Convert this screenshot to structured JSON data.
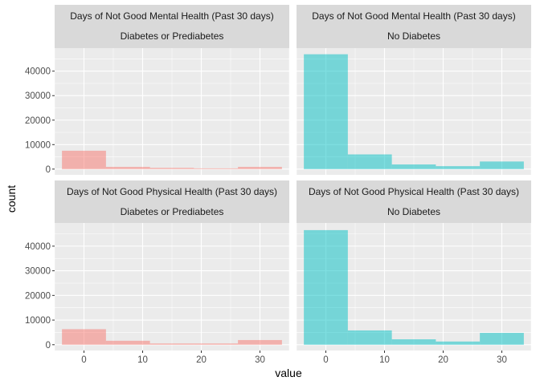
{
  "chart_data": {
    "type": "bar",
    "xlabel": "value",
    "ylabel": "count",
    "xlim": [
      -5,
      35
    ],
    "ylim": [
      -2350,
      49400
    ],
    "x_ticks": [
      0,
      10,
      20,
      30
    ],
    "y_ticks": [
      0,
      10000,
      20000,
      30000,
      40000
    ],
    "bin_edges": [
      -3.75,
      3.75,
      11.25,
      18.75,
      26.25,
      33.75
    ],
    "legend": "none",
    "grid": true,
    "colors": {
      "Diabetes or Prediabetes": "#F8766D",
      "No Diabetes": "#00BFC4"
    },
    "panels": [
      {
        "title": "Days of Not Good Mental Health (Past 30 days)",
        "group": "Diabetes or Prediabetes",
        "values": [
          7500,
          900,
          500,
          300,
          900
        ]
      },
      {
        "title": "Days of Not Good Mental Health (Past 30 days)",
        "group": "No Diabetes",
        "values": [
          46900,
          6000,
          1900,
          1200,
          3100
        ]
      },
      {
        "title": "Days of Not Good Physical Health (Past 30 days)",
        "group": "Diabetes or Prediabetes",
        "values": [
          6300,
          1600,
          500,
          500,
          1900
        ]
      },
      {
        "title": "Days of Not Good Physical Health (Past 30 days)",
        "group": "No Diabetes",
        "values": [
          46500,
          5800,
          2200,
          1300,
          4800
        ]
      }
    ]
  }
}
